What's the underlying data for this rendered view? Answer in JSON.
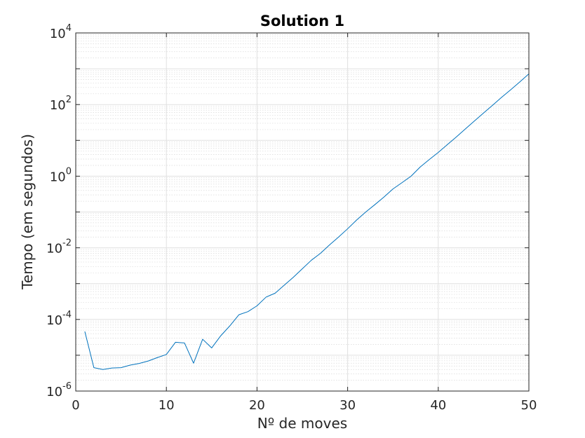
{
  "chart_data": {
    "type": "line",
    "title": "Solution 1",
    "xlabel": "Nº de moves",
    "ylabel": "Tempo (em segundos)",
    "xlim": [
      0,
      50
    ],
    "ylim": [
      1e-06,
      10000
    ],
    "yscale": "log",
    "grid": true,
    "minor_grid": true,
    "x_ticks": [
      0,
      10,
      20,
      30,
      40,
      50
    ],
    "x_tick_labels": [
      "0",
      "10",
      "20",
      "30",
      "40",
      "50"
    ],
    "y_ticks": [
      {
        "base": "10",
        "exp": "-6",
        "value": 1e-06
      },
      {
        "base": "10",
        "exp": "-4",
        "value": 0.0001
      },
      {
        "base": "10",
        "exp": "-2",
        "value": 0.01
      },
      {
        "base": "10",
        "exp": "0",
        "value": 1
      },
      {
        "base": "10",
        "exp": "2",
        "value": 100
      },
      {
        "base": "10",
        "exp": "4",
        "value": 10000
      }
    ],
    "series": [
      {
        "color": "#0072bd",
        "x": [
          1,
          2,
          3,
          4,
          5,
          6,
          7,
          8,
          9,
          10,
          11,
          12,
          13,
          14,
          15,
          16,
          17,
          18,
          19,
          20,
          21,
          22,
          23,
          24,
          25,
          26,
          27,
          28,
          29,
          30,
          31,
          32,
          33,
          34,
          35,
          36,
          37,
          38,
          39,
          40,
          41,
          42,
          43,
          44,
          45,
          46,
          47,
          48,
          49,
          50
        ],
        "y": [
          4.6e-05,
          4.5e-06,
          4e-06,
          4.4e-06,
          4.5e-06,
          5.3e-06,
          5.9e-06,
          6.9e-06,
          8.6e-06,
          1.05e-05,
          2.3e-05,
          2.2e-05,
          6e-06,
          2.8e-05,
          1.6e-05,
          3.5e-05,
          6.6e-05,
          0.000135,
          0.000165,
          0.00024,
          0.00042,
          0.00054,
          0.0009,
          0.0015,
          0.0026,
          0.0045,
          0.007,
          0.012,
          0.02,
          0.034,
          0.06,
          0.1,
          0.16,
          0.26,
          0.44,
          0.66,
          1.0,
          1.8,
          2.9,
          4.6,
          7.6,
          12.5,
          21,
          35,
          58,
          96,
          160,
          260,
          430,
          720
        ]
      }
    ]
  }
}
